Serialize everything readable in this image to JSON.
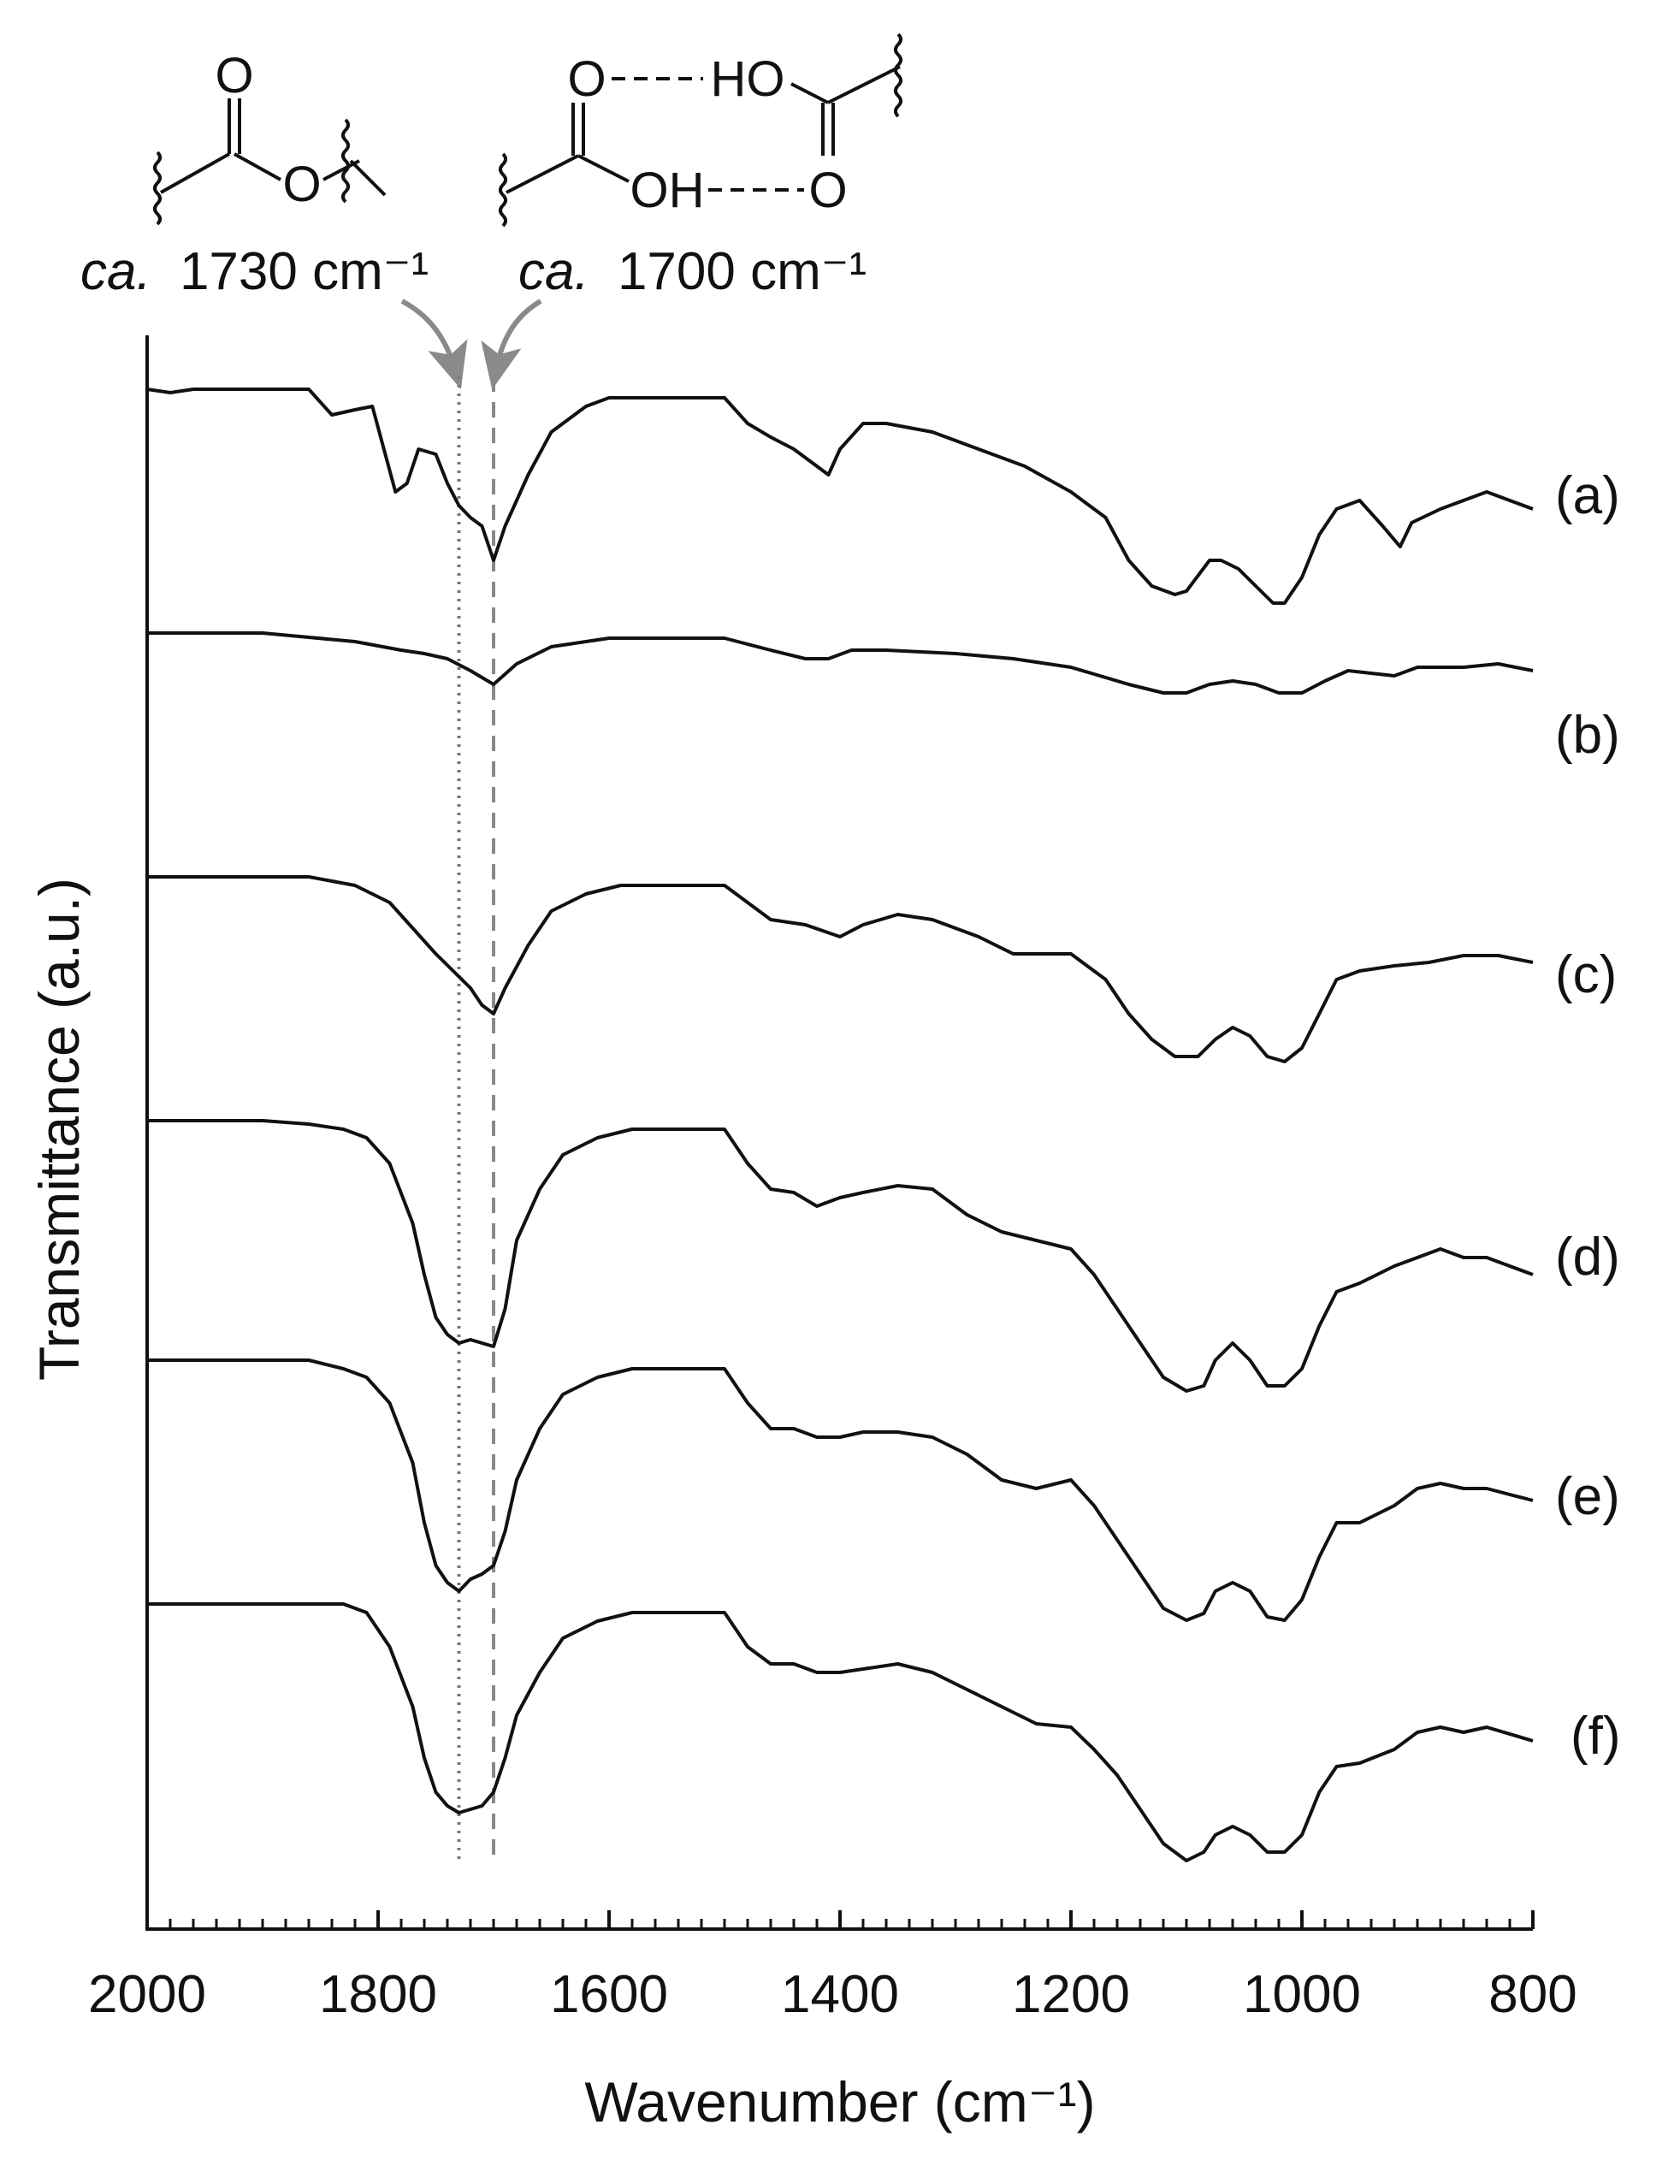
{
  "chart_data": {
    "type": "line",
    "xlabel": "Wavenumber (cm⁻¹)",
    "ylabel": "Transmittance (a.u.)",
    "xlim": [
      2000,
      800
    ],
    "x_reversed": true,
    "x_ticks": [
      "2000",
      "1800",
      "1600",
      "1400",
      "1200",
      "1000",
      "800"
    ],
    "grid": false,
    "reference_lines": [
      {
        "x": 1730,
        "style": "dotted"
      },
      {
        "x": 1700,
        "style": "dashed"
      }
    ],
    "annotations": [
      {
        "italic": "ca.",
        "text": "1730 cm⁻¹",
        "points_to": 1730
      },
      {
        "italic": "ca.",
        "text": "1700 cm⁻¹",
        "points_to": 1700
      }
    ],
    "structures": {
      "ester": {
        "carbonyl_o": "O",
        "ester_o": "O"
      },
      "acid_dimer": {
        "top_o": "O",
        "top_oh": "HO",
        "bottom_oh": "OH",
        "bottom_o": "O"
      }
    },
    "series": [
      {
        "name": "(a)",
        "points": [
          [
            2000,
            0
          ],
          [
            1980,
            -2
          ],
          [
            1960,
            0
          ],
          [
            1900,
            0
          ],
          [
            1860,
            0
          ],
          [
            1840,
            -15
          ],
          [
            1820,
            -12
          ],
          [
            1805,
            -10
          ],
          [
            1795,
            -35
          ],
          [
            1785,
            -60
          ],
          [
            1775,
            -55
          ],
          [
            1765,
            -35
          ],
          [
            1750,
            -38
          ],
          [
            1740,
            -55
          ],
          [
            1730,
            -68
          ],
          [
            1720,
            -75
          ],
          [
            1710,
            -80
          ],
          [
            1700,
            -100
          ],
          [
            1690,
            -80
          ],
          [
            1670,
            -50
          ],
          [
            1650,
            -25
          ],
          [
            1620,
            -10
          ],
          [
            1600,
            -5
          ],
          [
            1560,
            -5
          ],
          [
            1500,
            -5
          ],
          [
            1480,
            -20
          ],
          [
            1460,
            -28
          ],
          [
            1440,
            -35
          ],
          [
            1420,
            -45
          ],
          [
            1410,
            -50
          ],
          [
            1400,
            -35
          ],
          [
            1380,
            -20
          ],
          [
            1360,
            -20
          ],
          [
            1320,
            -25
          ],
          [
            1280,
            -35
          ],
          [
            1240,
            -45
          ],
          [
            1200,
            -60
          ],
          [
            1170,
            -75
          ],
          [
            1150,
            -100
          ],
          [
            1130,
            -115
          ],
          [
            1110,
            -120
          ],
          [
            1100,
            -118
          ],
          [
            1080,
            -100
          ],
          [
            1070,
            -100
          ],
          [
            1055,
            -105
          ],
          [
            1040,
            -115
          ],
          [
            1025,
            -125
          ],
          [
            1015,
            -125
          ],
          [
            1000,
            -110
          ],
          [
            985,
            -85
          ],
          [
            970,
            -70
          ],
          [
            950,
            -65
          ],
          [
            930,
            -80
          ],
          [
            915,
            -92
          ],
          [
            905,
            -78
          ],
          [
            880,
            -70
          ],
          [
            860,
            -65
          ],
          [
            840,
            -60
          ],
          [
            820,
            -65
          ],
          [
            800,
            -70
          ]
        ]
      },
      {
        "name": "(b)",
        "points": [
          [
            2000,
            0
          ],
          [
            1960,
            0
          ],
          [
            1900,
            0
          ],
          [
            1820,
            -5
          ],
          [
            1780,
            -10
          ],
          [
            1760,
            -12
          ],
          [
            1740,
            -15
          ],
          [
            1720,
            -22
          ],
          [
            1700,
            -30
          ],
          [
            1680,
            -18
          ],
          [
            1650,
            -8
          ],
          [
            1600,
            -3
          ],
          [
            1560,
            -3
          ],
          [
            1500,
            -3
          ],
          [
            1460,
            -10
          ],
          [
            1430,
            -15
          ],
          [
            1410,
            -15
          ],
          [
            1390,
            -10
          ],
          [
            1360,
            -10
          ],
          [
            1300,
            -12
          ],
          [
            1250,
            -15
          ],
          [
            1200,
            -20
          ],
          [
            1150,
            -30
          ],
          [
            1120,
            -35
          ],
          [
            1100,
            -35
          ],
          [
            1080,
            -30
          ],
          [
            1060,
            -28
          ],
          [
            1040,
            -30
          ],
          [
            1020,
            -35
          ],
          [
            1000,
            -35
          ],
          [
            980,
            -28
          ],
          [
            960,
            -22
          ],
          [
            920,
            -25
          ],
          [
            900,
            -20
          ],
          [
            860,
            -20
          ],
          [
            830,
            -18
          ],
          [
            800,
            -22
          ]
        ]
      },
      {
        "name": "(c)",
        "points": [
          [
            2000,
            0
          ],
          [
            1960,
            0
          ],
          [
            1900,
            0
          ],
          [
            1860,
            0
          ],
          [
            1820,
            -5
          ],
          [
            1790,
            -15
          ],
          [
            1770,
            -30
          ],
          [
            1750,
            -45
          ],
          [
            1735,
            -55
          ],
          [
            1720,
            -65
          ],
          [
            1710,
            -75
          ],
          [
            1700,
            -80
          ],
          [
            1690,
            -65
          ],
          [
            1670,
            -40
          ],
          [
            1650,
            -20
          ],
          [
            1620,
            -10
          ],
          [
            1590,
            -5
          ],
          [
            1560,
            -5
          ],
          [
            1500,
            -5
          ],
          [
            1480,
            -15
          ],
          [
            1460,
            -25
          ],
          [
            1430,
            -28
          ],
          [
            1400,
            -35
          ],
          [
            1380,
            -28
          ],
          [
            1350,
            -22
          ],
          [
            1320,
            -25
          ],
          [
            1280,
            -35
          ],
          [
            1250,
            -45
          ],
          [
            1200,
            -45
          ],
          [
            1170,
            -60
          ],
          [
            1150,
            -80
          ],
          [
            1130,
            -95
          ],
          [
            1110,
            -105
          ],
          [
            1090,
            -105
          ],
          [
            1075,
            -95
          ],
          [
            1060,
            -88
          ],
          [
            1045,
            -93
          ],
          [
            1030,
            -105
          ],
          [
            1015,
            -108
          ],
          [
            1000,
            -100
          ],
          [
            985,
            -80
          ],
          [
            970,
            -60
          ],
          [
            950,
            -55
          ],
          [
            920,
            -52
          ],
          [
            890,
            -50
          ],
          [
            860,
            -46
          ],
          [
            830,
            -46
          ],
          [
            800,
            -50
          ]
        ]
      },
      {
        "name": "(d)",
        "points": [
          [
            2000,
            0
          ],
          [
            1960,
            0
          ],
          [
            1900,
            0
          ],
          [
            1860,
            -2
          ],
          [
            1830,
            -5
          ],
          [
            1810,
            -10
          ],
          [
            1790,
            -25
          ],
          [
            1770,
            -60
          ],
          [
            1760,
            -90
          ],
          [
            1750,
            -115
          ],
          [
            1740,
            -125
          ],
          [
            1730,
            -130
          ],
          [
            1720,
            -128
          ],
          [
            1710,
            -130
          ],
          [
            1700,
            -132
          ],
          [
            1690,
            -110
          ],
          [
            1680,
            -70
          ],
          [
            1660,
            -40
          ],
          [
            1640,
            -20
          ],
          [
            1610,
            -10
          ],
          [
            1580,
            -5
          ],
          [
            1500,
            -5
          ],
          [
            1480,
            -25
          ],
          [
            1460,
            -40
          ],
          [
            1440,
            -42
          ],
          [
            1420,
            -50
          ],
          [
            1400,
            -45
          ],
          [
            1380,
            -42
          ],
          [
            1350,
            -38
          ],
          [
            1320,
            -40
          ],
          [
            1290,
            -55
          ],
          [
            1260,
            -65
          ],
          [
            1230,
            -70
          ],
          [
            1200,
            -75
          ],
          [
            1180,
            -90
          ],
          [
            1160,
            -110
          ],
          [
            1140,
            -130
          ],
          [
            1120,
            -150
          ],
          [
            1100,
            -158
          ],
          [
            1085,
            -155
          ],
          [
            1075,
            -140
          ],
          [
            1060,
            -130
          ],
          [
            1045,
            -140
          ],
          [
            1030,
            -155
          ],
          [
            1015,
            -155
          ],
          [
            1000,
            -145
          ],
          [
            985,
            -120
          ],
          [
            970,
            -100
          ],
          [
            950,
            -95
          ],
          [
            920,
            -85
          ],
          [
            900,
            -80
          ],
          [
            880,
            -75
          ],
          [
            860,
            -80
          ],
          [
            840,
            -80
          ],
          [
            800,
            -90
          ]
        ]
      },
      {
        "name": "(e)",
        "points": [
          [
            2000,
            0
          ],
          [
            1960,
            0
          ],
          [
            1900,
            0
          ],
          [
            1860,
            0
          ],
          [
            1830,
            -5
          ],
          [
            1810,
            -10
          ],
          [
            1790,
            -25
          ],
          [
            1770,
            -60
          ],
          [
            1760,
            -95
          ],
          [
            1750,
            -120
          ],
          [
            1740,
            -130
          ],
          [
            1730,
            -135
          ],
          [
            1720,
            -128
          ],
          [
            1710,
            -125
          ],
          [
            1700,
            -120
          ],
          [
            1690,
            -100
          ],
          [
            1680,
            -70
          ],
          [
            1660,
            -40
          ],
          [
            1640,
            -20
          ],
          [
            1610,
            -10
          ],
          [
            1580,
            -5
          ],
          [
            1500,
            -5
          ],
          [
            1480,
            -25
          ],
          [
            1460,
            -40
          ],
          [
            1440,
            -40
          ],
          [
            1420,
            -45
          ],
          [
            1400,
            -45
          ],
          [
            1380,
            -42
          ],
          [
            1350,
            -42
          ],
          [
            1320,
            -45
          ],
          [
            1290,
            -55
          ],
          [
            1260,
            -70
          ],
          [
            1230,
            -75
          ],
          [
            1200,
            -70
          ],
          [
            1180,
            -85
          ],
          [
            1160,
            -105
          ],
          [
            1140,
            -125
          ],
          [
            1120,
            -145
          ],
          [
            1100,
            -152
          ],
          [
            1085,
            -148
          ],
          [
            1075,
            -135
          ],
          [
            1060,
            -130
          ],
          [
            1045,
            -135
          ],
          [
            1030,
            -150
          ],
          [
            1015,
            -152
          ],
          [
            1000,
            -140
          ],
          [
            985,
            -115
          ],
          [
            970,
            -95
          ],
          [
            950,
            -95
          ],
          [
            920,
            -85
          ],
          [
            900,
            -75
          ],
          [
            880,
            -72
          ],
          [
            860,
            -75
          ],
          [
            840,
            -75
          ],
          [
            800,
            -82
          ]
        ]
      },
      {
        "name": "(f)",
        "points": [
          [
            2000,
            0
          ],
          [
            1960,
            0
          ],
          [
            1900,
            0
          ],
          [
            1860,
            0
          ],
          [
            1830,
            0
          ],
          [
            1810,
            -5
          ],
          [
            1790,
            -25
          ],
          [
            1770,
            -60
          ],
          [
            1760,
            -90
          ],
          [
            1750,
            -110
          ],
          [
            1740,
            -118
          ],
          [
            1730,
            -122
          ],
          [
            1720,
            -120
          ],
          [
            1710,
            -118
          ],
          [
            1700,
            -110
          ],
          [
            1690,
            -90
          ],
          [
            1680,
            -65
          ],
          [
            1660,
            -40
          ],
          [
            1640,
            -20
          ],
          [
            1610,
            -10
          ],
          [
            1580,
            -5
          ],
          [
            1500,
            -5
          ],
          [
            1480,
            -25
          ],
          [
            1460,
            -35
          ],
          [
            1440,
            -35
          ],
          [
            1420,
            -40
          ],
          [
            1400,
            -40
          ],
          [
            1380,
            -38
          ],
          [
            1350,
            -35
          ],
          [
            1320,
            -40
          ],
          [
            1290,
            -50
          ],
          [
            1260,
            -60
          ],
          [
            1230,
            -70
          ],
          [
            1200,
            -72
          ],
          [
            1180,
            -85
          ],
          [
            1160,
            -100
          ],
          [
            1140,
            -120
          ],
          [
            1120,
            -140
          ],
          [
            1100,
            -150
          ],
          [
            1085,
            -145
          ],
          [
            1075,
            -135
          ],
          [
            1060,
            -130
          ],
          [
            1045,
            -135
          ],
          [
            1030,
            -145
          ],
          [
            1015,
            -145
          ],
          [
            1000,
            -135
          ],
          [
            985,
            -110
          ],
          [
            970,
            -95
          ],
          [
            950,
            -93
          ],
          [
            920,
            -85
          ],
          [
            900,
            -75
          ],
          [
            880,
            -72
          ],
          [
            860,
            -75
          ],
          [
            840,
            -72
          ],
          [
            800,
            -80
          ]
        ]
      }
    ]
  }
}
